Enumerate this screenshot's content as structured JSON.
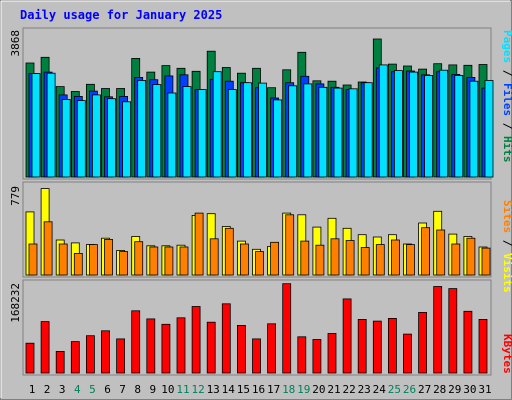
{
  "chart_data": [
    {
      "type": "bar",
      "panel": "hits-files-pages",
      "title": "Daily usage for January 2025",
      "ymax_label": "3868",
      "categories": [
        "1",
        "2",
        "3",
        "4",
        "5",
        "6",
        "7",
        "8",
        "9",
        "10",
        "11",
        "12",
        "13",
        "14",
        "15",
        "16",
        "17",
        "18",
        "19",
        "20",
        "21",
        "22",
        "23",
        "24",
        "25",
        "26",
        "27",
        "28",
        "29",
        "30",
        "31"
      ],
      "weekend_days": [
        "4",
        "5",
        "11",
        "12",
        "18",
        "19",
        "25",
        "26"
      ],
      "series": [
        {
          "name": "Hits",
          "color": "#008040",
          "values": [
            3000,
            3150,
            2380,
            2250,
            2440,
            2330,
            2330,
            3120,
            2760,
            2930,
            2860,
            2780,
            3310,
            2880,
            2730,
            2860,
            2350,
            2820,
            3280,
            2530,
            2520,
            2420,
            2500,
            3630,
            2970,
            2920,
            2840,
            2980,
            2950,
            2940,
            2960
          ]
        },
        {
          "name": "Files",
          "color": "#0040ff",
          "values": [
            2720,
            2760,
            2160,
            2120,
            2260,
            2110,
            2120,
            2620,
            2560,
            2660,
            2690,
            2300,
            2570,
            2520,
            2480,
            2350,
            2080,
            2480,
            2650,
            2450,
            2360,
            2300,
            2480,
            2870,
            2770,
            2790,
            2690,
            2770,
            2700,
            2620,
            2340
          ]
        },
        {
          "name": "Pages",
          "color": "#00e0ff",
          "values": [
            2720,
            2730,
            2040,
            2010,
            2160,
            2060,
            1980,
            2540,
            2430,
            2210,
            2380,
            2300,
            2770,
            2300,
            2480,
            2470,
            2030,
            2400,
            2450,
            2360,
            2340,
            2320,
            2480,
            2950,
            2800,
            2760,
            2670,
            2810,
            2670,
            2520,
            2540
          ]
        }
      ],
      "legend": [
        "Pages",
        "Files",
        "Hits"
      ]
    },
    {
      "type": "bar",
      "panel": "visits-sites",
      "ymax_label": "779",
      "series": [
        {
          "name": "Visits",
          "color": "#ffff00",
          "values": [
            540,
            740,
            300,
            275,
            260,
            315,
            210,
            330,
            250,
            250,
            255,
            510,
            525,
            415,
            290,
            220,
            245,
            530,
            515,
            410,
            485,
            400,
            345,
            325,
            345,
            265,
            445,
            545,
            350,
            330,
            240
          ]
        },
        {
          "name": "Sites",
          "color": "#ff8000",
          "values": [
            265,
            455,
            265,
            185,
            260,
            305,
            200,
            285,
            240,
            240,
            240,
            530,
            310,
            400,
            265,
            200,
            280,
            515,
            290,
            255,
            310,
            295,
            235,
            260,
            300,
            260,
            405,
            385,
            265,
            315,
            230
          ]
        }
      ],
      "legend": [
        "Sites",
        "Visits"
      ]
    },
    {
      "type": "bar",
      "panel": "kbytes",
      "ymax_label": "168232",
      "series": [
        {
          "name": "KBytes",
          "color": "#ff0000",
          "values": [
            55000,
            95000,
            40000,
            58000,
            69000,
            78000,
            63000,
            115000,
            100000,
            90000,
            102000,
            123000,
            94000,
            128000,
            88000,
            63000,
            91000,
            165000,
            67000,
            62000,
            73000,
            137000,
            99000,
            96000,
            101000,
            72000,
            112000,
            160000,
            156000,
            114000,
            99000
          ]
        }
      ],
      "legend": [
        "KBytes"
      ]
    }
  ],
  "colors": {
    "weekday_label": "#000000",
    "weekend_label": "#00805c",
    "title": "#0000ff",
    "plot_bg": "#c0c0c0",
    "frame_light": "#ffffff",
    "frame_dark": "#808080"
  },
  "legend_separator": " / "
}
